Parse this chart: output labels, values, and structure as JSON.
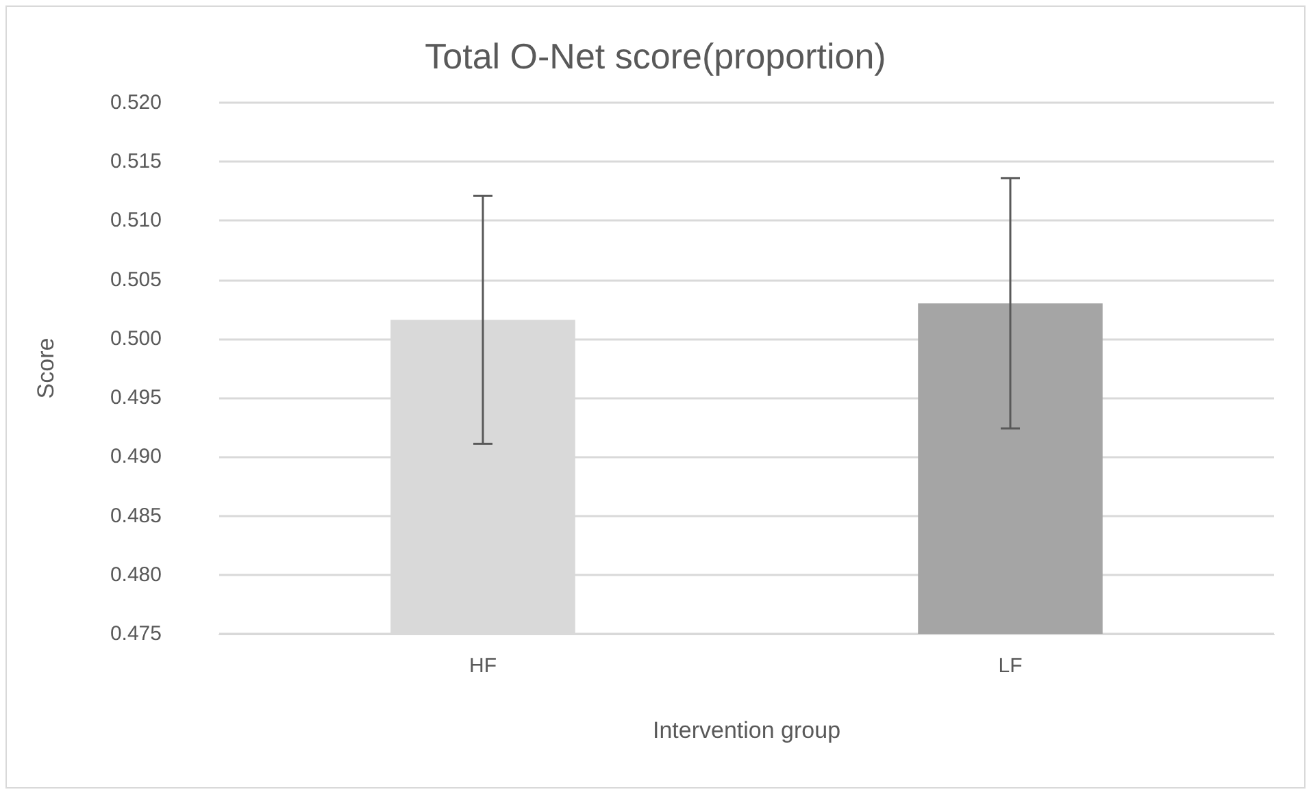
{
  "chart_data": {
    "type": "bar",
    "title": "Total O-Net score(proportion)",
    "xlabel": "Intervention group",
    "ylabel": "Score",
    "categories": [
      "HF",
      "LF"
    ],
    "values": [
      0.5016,
      0.503
    ],
    "errors": [
      0.0105,
      0.0106
    ],
    "colors": [
      "#d9d9d9",
      "#a5a5a5"
    ],
    "ylim": [
      0.475,
      0.52
    ],
    "yticks": [
      {
        "value": 0.475,
        "label": "0.475"
      },
      {
        "value": 0.48,
        "label": "0.480"
      },
      {
        "value": 0.485,
        "label": "0.485"
      },
      {
        "value": 0.49,
        "label": "0.490"
      },
      {
        "value": 0.495,
        "label": "0.495"
      },
      {
        "value": 0.5,
        "label": "0.500"
      },
      {
        "value": 0.505,
        "label": "0.505"
      },
      {
        "value": 0.51,
        "label": "0.510"
      },
      {
        "value": 0.515,
        "label": "0.515"
      },
      {
        "value": 0.52,
        "label": "0.520"
      }
    ],
    "grid": "y"
  }
}
